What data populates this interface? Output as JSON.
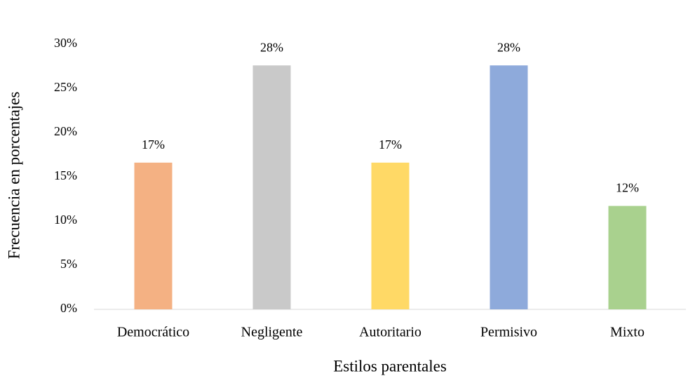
{
  "chart_data": {
    "type": "bar",
    "x_label": "Estilos parentales",
    "y_label": "Frecuencia en porcentajes",
    "categories": [
      "Democrático",
      "Negligente",
      "Autoritario",
      "Permisivo",
      "Mixto"
    ],
    "values": [
      16.6,
      27.6,
      16.6,
      27.6,
      11.7
    ],
    "value_labels": [
      "17%",
      "28%",
      "17%",
      "28%",
      "12%"
    ],
    "colors": [
      "#f4b183",
      "#c9c9c9",
      "#ffd966",
      "#8eaadb",
      "#a9d18e"
    ],
    "ylim": [
      0,
      30
    ],
    "yticks": [
      {
        "value": 0,
        "label": "0%"
      },
      {
        "value": 5,
        "label": "5%"
      },
      {
        "value": 10,
        "label": "10%"
      },
      {
        "value": 15,
        "label": "15%"
      },
      {
        "value": 20,
        "label": "20%"
      },
      {
        "value": 25,
        "label": "25%"
      },
      {
        "value": 30,
        "label": "30%"
      }
    ],
    "grid": false
  }
}
